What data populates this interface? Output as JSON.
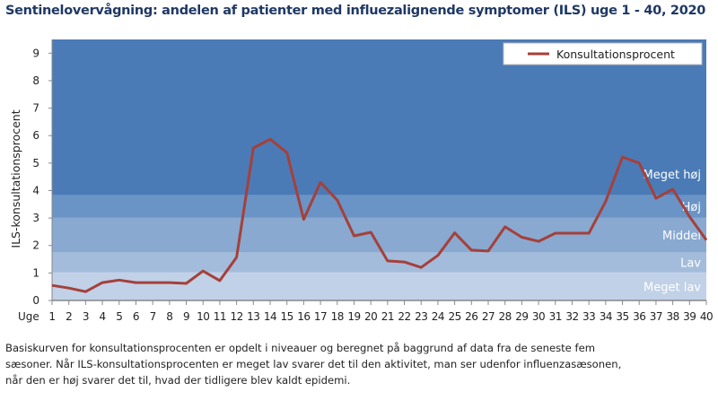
{
  "chart_data": {
    "type": "line",
    "title": "Sentinelovervågning: andelen af patienter med influezalignende symptomer (ILS) uge 1 - 40, 2020",
    "xlabel": "Uge",
    "ylabel": "ILS-konsultationsprocent",
    "ylim": [
      0,
      9.5
    ],
    "yticks": [
      "0",
      "1",
      "2",
      "3",
      "4",
      "5",
      "6",
      "7",
      "8",
      "9"
    ],
    "categories": [
      "1",
      "2",
      "3",
      "4",
      "5",
      "6",
      "7",
      "8",
      "9",
      "10",
      "11",
      "12",
      "13",
      "14",
      "15",
      "16",
      "17",
      "18",
      "19",
      "20",
      "21",
      "22",
      "23",
      "24",
      "25",
      "26",
      "27",
      "28",
      "29",
      "30",
      "31",
      "32",
      "33",
      "34",
      "35",
      "36",
      "37",
      "38",
      "39",
      "40"
    ],
    "series": [
      {
        "name": "Konsultationsprocent",
        "color": "#a5403a",
        "values": [
          0.55,
          0.45,
          0.32,
          0.65,
          0.74,
          0.65,
          0.65,
          0.65,
          0.62,
          1.07,
          0.72,
          1.57,
          5.55,
          5.87,
          5.38,
          2.95,
          4.3,
          3.65,
          2.35,
          2.48,
          1.44,
          1.4,
          1.2,
          1.64,
          2.46,
          1.83,
          1.8,
          2.68,
          2.3,
          2.15,
          2.45,
          2.45,
          2.45,
          3.6,
          5.22,
          5.0,
          3.72,
          4.05,
          3.05,
          2.2
        ]
      }
    ],
    "bands": [
      {
        "label": "Meget lav",
        "from": 0,
        "to": 1.02,
        "color": "#c1d1e7"
      },
      {
        "label": "Lav",
        "from": 1.02,
        "to": 1.75,
        "color": "#a4bcdc"
      },
      {
        "label": "Middel",
        "from": 1.75,
        "to": 3.02,
        "color": "#89a9d0"
      },
      {
        "label": "Høj",
        "from": 3.02,
        "to": 3.83,
        "color": "#6a93c6"
      },
      {
        "label": "Meget høj",
        "from": 3.83,
        "to": 9.5,
        "color": "#4a7bb7"
      }
    ],
    "legend": "top-right",
    "grid": false
  },
  "footer": {
    "lines": [
      "Basiskurven  for konsultationsprocenten  er opdelt i niveauer  og beregnet  på baggrund  af data fra de seneste  fem",
      "sæsoner.  Når ILS-konsultationsprocenten  er meget lav svarer det til den  aktivitet, man ser udenfor influenzasæsonen,",
      "når den er høj svarer det til, hvad der tidligere  blev kaldt epidemi."
    ]
  }
}
